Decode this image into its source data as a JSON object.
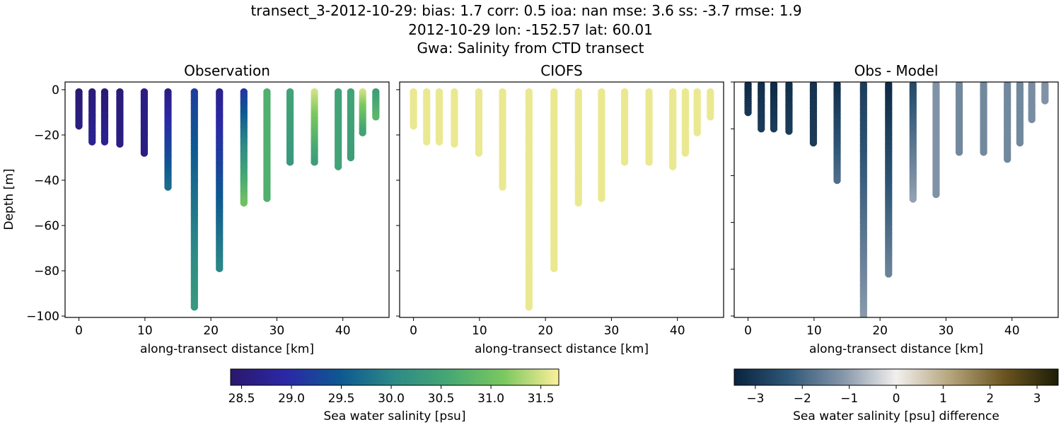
{
  "title_lines": [
    "transect_3-2012-10-29: bias: 1.7  corr: 0.5  ioa: nan  mse: 3.6  ss: -3.7  rmse: 1.9",
    "2012-10-29 lon: -152.57 lat: 60.01",
    "Gwa: Salinity from CTD transect"
  ],
  "colorbars": [
    {
      "label": "Sea water salinity [psu]",
      "range": [
        28.39,
        31.68
      ],
      "ticks": [
        "28.5",
        "29.0",
        "29.5",
        "30.0",
        "30.5",
        "31.0",
        "31.5"
      ],
      "tick_values": [
        28.5,
        29.0,
        29.5,
        30.0,
        30.5,
        31.0,
        31.5
      ],
      "colormap": [
        "#2a186c",
        "#2b27a6",
        "#0e5892",
        "#2d8a86",
        "#46a873",
        "#7cc85f",
        "#fdef9a"
      ]
    },
    {
      "label": "Sea water salinity [psu] difference",
      "range": [
        -3.45,
        3.45
      ],
      "ticks": [
        "−3",
        "−2",
        "−1",
        "0",
        "1",
        "2",
        "3"
      ],
      "tick_values": [
        -3,
        -2,
        -1,
        0,
        1,
        2,
        3
      ],
      "colormap": [
        "#08233e",
        "#2f5777",
        "#8495a8",
        "#f2efee",
        "#b5a57c",
        "#6b5420",
        "#1c1e06"
      ]
    }
  ],
  "chart_data": [
    {
      "type": "scatter",
      "title": "Observation",
      "xlabel": "along-transect distance [km]",
      "ylabel": "Depth [m]",
      "xlim": [
        -2.1,
        47
      ],
      "ylim": [
        -100.6,
        3.4
      ],
      "xticks": [
        0,
        10,
        20,
        30,
        40
      ],
      "yticks": [
        0,
        -20,
        -40,
        -60,
        -80,
        -100
      ],
      "ytick_labels": [
        "0",
        "−20",
        "−40",
        "−60",
        "−80",
        "−100"
      ],
      "colorbar": 0,
      "stations": [
        {
          "x": 0,
          "max_depth": -16,
          "top": 28.45,
          "bottom": 28.6
        },
        {
          "x": 2,
          "max_depth": -23,
          "top": 28.5,
          "bottom": 28.75
        },
        {
          "x": 3.9,
          "max_depth": -23,
          "top": 28.45,
          "bottom": 28.75
        },
        {
          "x": 6.2,
          "max_depth": -24,
          "top": 28.5,
          "bottom": 28.6
        },
        {
          "x": 9.9,
          "max_depth": -28,
          "top": 28.6,
          "bottom": 28.6
        },
        {
          "x": 13.5,
          "max_depth": -43,
          "top": 28.6,
          "bottom": 29.7
        },
        {
          "x": 17.5,
          "max_depth": -96,
          "top": 29.2,
          "bottom": 30.3
        },
        {
          "x": 21.3,
          "max_depth": -79,
          "top": 28.7,
          "bottom": 30.0
        },
        {
          "x": 25,
          "max_depth": -50,
          "top": 29.1,
          "bottom": 31.0
        },
        {
          "x": 28.5,
          "max_depth": -48,
          "top": 30.7,
          "bottom": 30.7
        },
        {
          "x": 32,
          "max_depth": -32,
          "top": 30.5,
          "bottom": 30.3
        },
        {
          "x": 35.7,
          "max_depth": -32,
          "top": 31.5,
          "bottom": 30.4
        },
        {
          "x": 39.3,
          "max_depth": -34,
          "top": 30.5,
          "bottom": 30.5
        },
        {
          "x": 41.2,
          "max_depth": -30,
          "top": 30.5,
          "bottom": 30.4
        },
        {
          "x": 43,
          "max_depth": -19,
          "top": 31.5,
          "bottom": 30.5
        },
        {
          "x": 45,
          "max_depth": -12,
          "top": 30.4,
          "bottom": 30.8
        }
      ]
    },
    {
      "type": "scatter",
      "title": "CIOFS",
      "xlabel": "along-transect distance [km]",
      "ylabel": "",
      "xlim": [
        -2.1,
        47
      ],
      "ylim": [
        -100.6,
        3.4
      ],
      "xticks": [
        0,
        10,
        20,
        30,
        40
      ],
      "yticks": [
        0,
        -20,
        -40,
        -60,
        -80,
        -100
      ],
      "colorbar": 0,
      "stations": [
        {
          "x": 0,
          "max_depth": -16,
          "top": 31.6,
          "bottom": 31.6
        },
        {
          "x": 2,
          "max_depth": -23,
          "top": 31.6,
          "bottom": 31.6
        },
        {
          "x": 3.9,
          "max_depth": -23,
          "top": 31.6,
          "bottom": 31.6
        },
        {
          "x": 6.2,
          "max_depth": -24,
          "top": 31.6,
          "bottom": 31.6
        },
        {
          "x": 9.9,
          "max_depth": -28,
          "top": 31.6,
          "bottom": 31.6
        },
        {
          "x": 13.5,
          "max_depth": -43,
          "top": 31.6,
          "bottom": 31.6
        },
        {
          "x": 17.5,
          "max_depth": -96,
          "top": 31.6,
          "bottom": 31.6
        },
        {
          "x": 21.3,
          "max_depth": -79,
          "top": 31.6,
          "bottom": 31.6
        },
        {
          "x": 25,
          "max_depth": -50,
          "top": 31.6,
          "bottom": 31.6
        },
        {
          "x": 28.5,
          "max_depth": -48,
          "top": 31.6,
          "bottom": 31.6
        },
        {
          "x": 32,
          "max_depth": -32,
          "top": 31.6,
          "bottom": 31.6
        },
        {
          "x": 35.7,
          "max_depth": -32,
          "top": 31.6,
          "bottom": 31.6
        },
        {
          "x": 39.3,
          "max_depth": -34,
          "top": 31.6,
          "bottom": 31.6
        },
        {
          "x": 41.2,
          "max_depth": -28,
          "top": 31.6,
          "bottom": 31.6
        },
        {
          "x": 43,
          "max_depth": -19,
          "top": 31.6,
          "bottom": 31.6
        },
        {
          "x": 45,
          "max_depth": -12,
          "top": 31.6,
          "bottom": 31.6
        }
      ]
    },
    {
      "type": "scatter",
      "title": "Obs - Model",
      "xlabel": "along-transect distance [km]",
      "ylabel": "",
      "xlim": [
        -2.1,
        47
      ],
      "ylim": [
        -100.6,
        0
      ],
      "xticks": [
        0,
        10,
        20,
        30,
        40
      ],
      "yticks": [
        0,
        -20,
        -40,
        -60,
        -80,
        -100
      ],
      "colorbar": 1,
      "stations": [
        {
          "x": 0,
          "max_depth": -13,
          "top": -3.3,
          "bottom": -3.0
        },
        {
          "x": 2,
          "max_depth": -20,
          "top": -3.2,
          "bottom": -2.9
        },
        {
          "x": 3.9,
          "max_depth": -20,
          "top": -3.3,
          "bottom": -2.9
        },
        {
          "x": 6.2,
          "max_depth": -21,
          "top": -3.2,
          "bottom": -2.9
        },
        {
          "x": 9.9,
          "max_depth": -26,
          "top": -3.1,
          "bottom": -2.9
        },
        {
          "x": 13.5,
          "max_depth": -42,
          "top": -3.2,
          "bottom": -1.9
        },
        {
          "x": 17.5,
          "max_depth": -100,
          "top": -2.9,
          "bottom": -1.1
        },
        {
          "x": 21.3,
          "max_depth": -82,
          "top": -3.3,
          "bottom": -1.5
        },
        {
          "x": 25,
          "max_depth": -50,
          "top": -2.6,
          "bottom": -1.0
        },
        {
          "x": 28.5,
          "max_depth": -48,
          "top": -1.2,
          "bottom": -1.2
        },
        {
          "x": 32,
          "max_depth": -30,
          "top": -1.4,
          "bottom": -1.4
        },
        {
          "x": 35.7,
          "max_depth": -30,
          "top": -1.4,
          "bottom": -1.4
        },
        {
          "x": 39.3,
          "max_depth": -33,
          "top": -1.4,
          "bottom": -1.4
        },
        {
          "x": 41.2,
          "max_depth": -26,
          "top": -1.4,
          "bottom": -1.4
        },
        {
          "x": 43,
          "max_depth": -16,
          "top": -1.3,
          "bottom": -1.3
        },
        {
          "x": 45,
          "max_depth": -8,
          "top": -1.2,
          "bottom": -1.2
        }
      ]
    }
  ]
}
